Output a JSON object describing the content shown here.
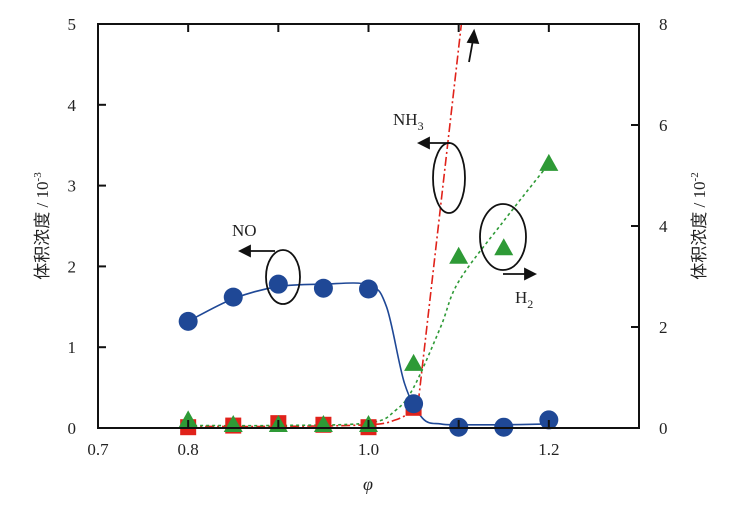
{
  "chart_data": {
    "type": "scatter",
    "xlabel": "φ",
    "ylabel_left": "体积浓度 / 10",
    "ylabel_left_exp": "-3",
    "ylabel_right": "体积浓度 / 10",
    "ylabel_right_exp": "-2",
    "xlim": [
      0.7,
      1.3
    ],
    "ylim_left": [
      0,
      5
    ],
    "ylim_right": [
      0,
      8
    ],
    "x_ticks": [
      0.7,
      0.8,
      0.9,
      1.0,
      1.1,
      1.2,
      1.3
    ],
    "x_tick_labels": [
      "0.7",
      "0.8",
      "",
      "1.0",
      "",
      "1.2",
      ""
    ],
    "y_left_ticks": [
      "0",
      "1",
      "2",
      "3",
      "4",
      "5"
    ],
    "y_right_ticks": [
      "0",
      "2",
      "4",
      "6",
      "8"
    ],
    "grid": false,
    "series": [
      {
        "name": "NO",
        "axis": "left",
        "marker": "circle",
        "color": "#1f4896",
        "line": "solid",
        "x": [
          0.8,
          0.85,
          0.9,
          0.95,
          1.0,
          1.05,
          1.1,
          1.15,
          1.2
        ],
        "y": [
          1.32,
          1.62,
          1.78,
          1.73,
          1.72,
          0.3,
          0.01,
          0.01,
          0.1
        ],
        "fit_x": [
          0.8,
          0.85,
          0.9,
          0.95,
          1.0,
          1.02,
          1.04,
          1.06,
          1.08,
          1.1,
          1.15,
          1.2
        ],
        "fit_y": [
          1.32,
          1.6,
          1.75,
          1.78,
          1.77,
          1.5,
          0.55,
          0.12,
          0.05,
          0.04,
          0.04,
          0.05
        ]
      },
      {
        "name": "NH3",
        "axis": "left",
        "marker": "square",
        "color": "#e0221a",
        "line": "dashdot",
        "x": [
          0.8,
          0.85,
          0.9,
          0.95,
          1.0,
          1.05
        ],
        "y": [
          0.01,
          0.03,
          0.06,
          0.04,
          0.01,
          0.25
        ],
        "fit_x": [
          0.8,
          0.9,
          1.0,
          1.03,
          1.05,
          1.055,
          1.103
        ],
        "fit_y": [
          0.02,
          0.02,
          0.04,
          0.1,
          0.22,
          0.3,
          5.0
        ]
      },
      {
        "name": "H2",
        "axis": "right",
        "marker": "triangle",
        "color": "#2e9a36",
        "line": "dotted",
        "x": [
          0.8,
          0.85,
          0.9,
          0.95,
          1.0,
          1.05,
          1.1,
          1.15,
          1.2
        ],
        "y": [
          0.15,
          0.06,
          0.06,
          0.06,
          0.06,
          1.27,
          3.39,
          3.56,
          5.23
        ],
        "fit_x": [
          0.8,
          0.9,
          1.0,
          1.03,
          1.05,
          1.08,
          1.1,
          1.15,
          1.2
        ],
        "fit_y": [
          0.05,
          0.05,
          0.1,
          0.35,
          0.8,
          2.0,
          2.9,
          4.1,
          5.23
        ]
      }
    ],
    "annotations": {
      "no": "NO",
      "nh3": "NH",
      "nh3_sub": "3",
      "h2": "H",
      "h2_sub": "2"
    }
  }
}
